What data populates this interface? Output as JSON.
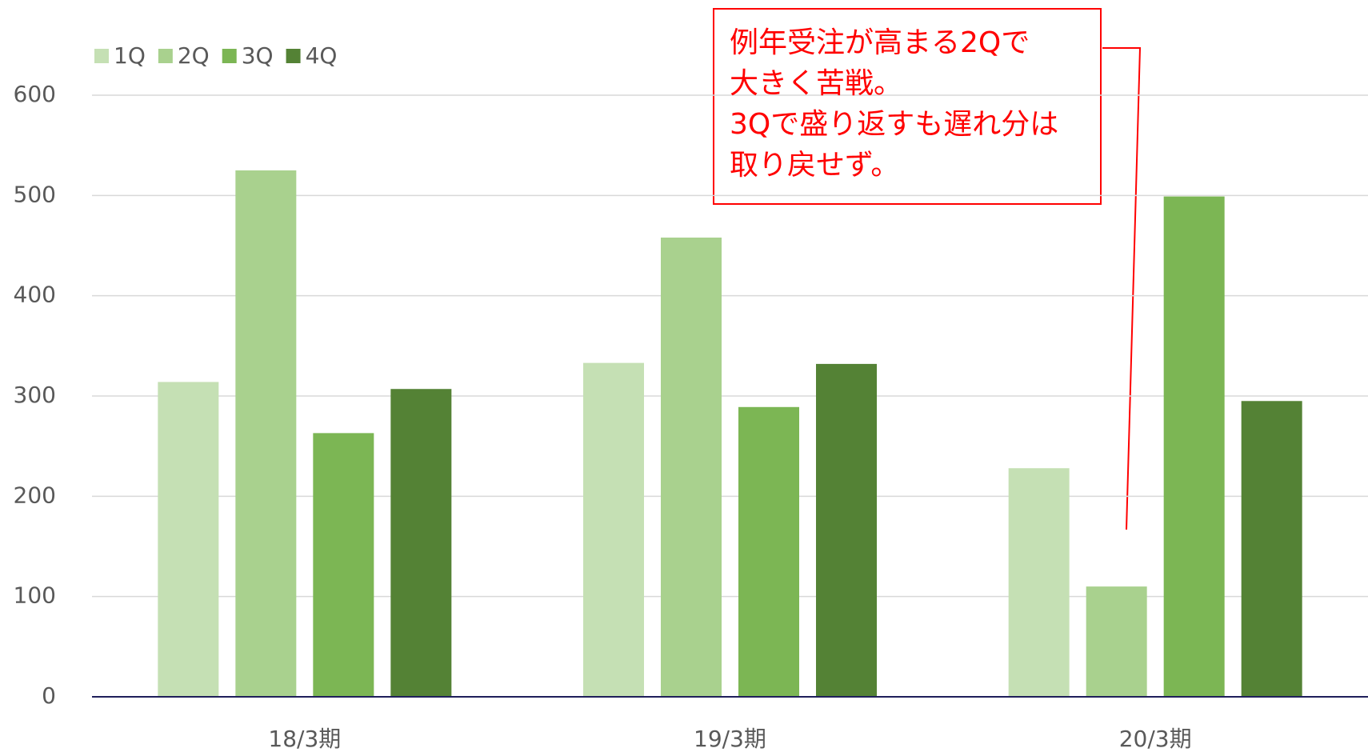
{
  "chart_data": {
    "type": "bar",
    "categories": [
      "18/3期",
      "19/3期",
      "20/3期"
    ],
    "series": [
      {
        "name": "1Q",
        "color": "#c5e0b4",
        "values": [
          314,
          333,
          228
        ]
      },
      {
        "name": "2Q",
        "color": "#a9d18e",
        "values": [
          525,
          458,
          110
        ]
      },
      {
        "name": "3Q",
        "color": "#7cb654",
        "values": [
          263,
          289,
          499
        ]
      },
      {
        "name": "4Q",
        "color": "#548235",
        "values": [
          307,
          332,
          295
        ]
      }
    ],
    "ylim": [
      0,
      600
    ],
    "yticks": [
      0,
      100,
      200,
      300,
      400,
      500,
      600
    ],
    "grid": true,
    "legend": "top-left",
    "annotation": {
      "lines": [
        "例年受注が高まる2Qで",
        "大きく苦戦。",
        "3Qで盛り返すも遅れ分は",
        "取り戻せず。"
      ]
    }
  }
}
